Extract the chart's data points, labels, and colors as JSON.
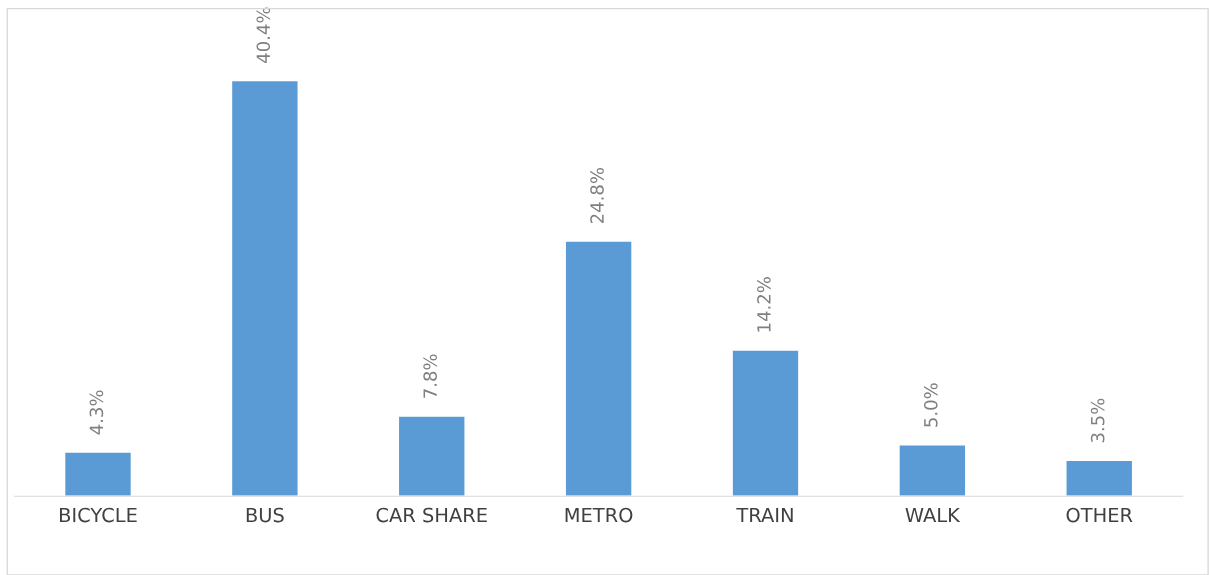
{
  "chart_data": {
    "type": "bar",
    "categories": [
      "BICYCLE",
      "BUS",
      "CAR SHARE",
      "METRO",
      "TRAIN",
      "WALK",
      "OTHER"
    ],
    "values": [
      4.3,
      40.4,
      7.8,
      24.8,
      14.2,
      5.0,
      3.5
    ],
    "value_labels": [
      "4.3%",
      "40.4%",
      "7.8%",
      "24.8%",
      "14.2%",
      "5.0%",
      "3.5%"
    ],
    "color": "#5b9bd5",
    "grid": false,
    "legend": false
  }
}
